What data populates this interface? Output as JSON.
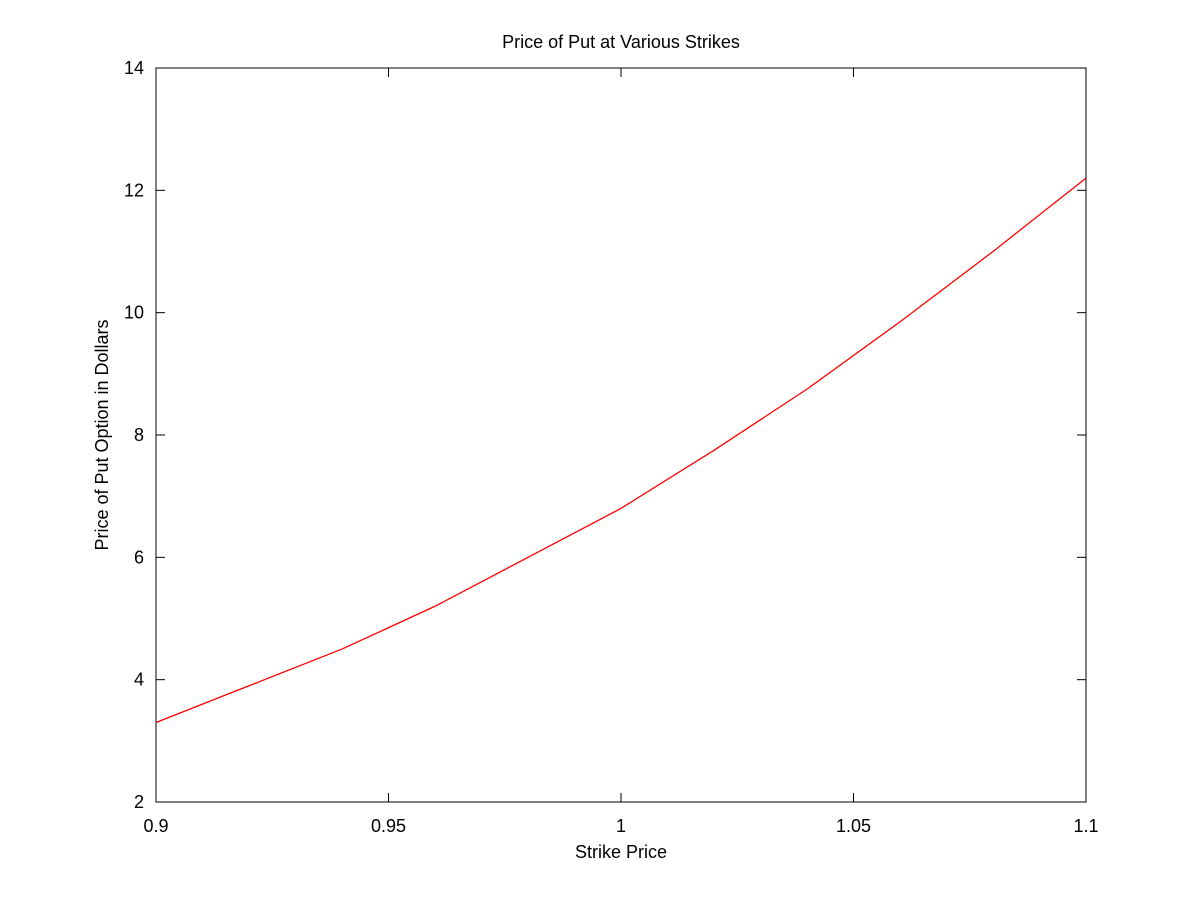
{
  "chart_data": {
    "type": "line",
    "title": "Price of Put at Various Strikes",
    "xlabel": "Strike Price",
    "ylabel": "Price of Put Option in Dollars",
    "xlim": [
      0.9,
      1.1
    ],
    "ylim": [
      2,
      14
    ],
    "grid": false,
    "x_ticks": [
      {
        "value": 0.9,
        "label": "0.9"
      },
      {
        "value": 0.95,
        "label": "0.95"
      },
      {
        "value": 1.0,
        "label": "1"
      },
      {
        "value": 1.05,
        "label": "1.05"
      },
      {
        "value": 1.1,
        "label": "1.1"
      }
    ],
    "y_ticks": [
      {
        "value": 2,
        "label": "2"
      },
      {
        "value": 4,
        "label": "4"
      },
      {
        "value": 6,
        "label": "6"
      },
      {
        "value": 8,
        "label": "8"
      },
      {
        "value": 10,
        "label": "10"
      },
      {
        "value": 12,
        "label": "12"
      },
      {
        "value": 14,
        "label": "14"
      }
    ],
    "series": [
      {
        "color": "#ff0000",
        "x": [
          0.9,
          0.92,
          0.94,
          0.96,
          0.98,
          1.0,
          1.02,
          1.04,
          1.06,
          1.08,
          1.1
        ],
        "y": [
          3.3,
          3.9,
          4.5,
          5.2,
          6.0,
          6.8,
          7.75,
          8.75,
          9.85,
          11.0,
          12.2
        ]
      }
    ]
  }
}
